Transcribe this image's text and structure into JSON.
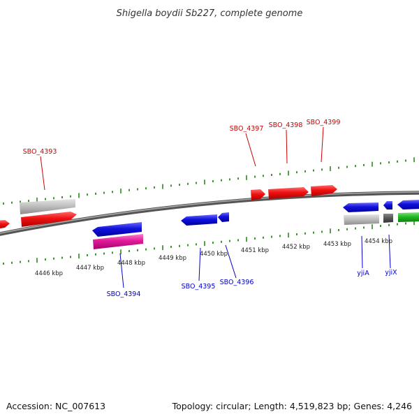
{
  "title": "Shigella boydii Sb227, complete genome",
  "footer": {
    "accession": "Accession: NC_007613",
    "summary": "Topology: circular; Length: 4,519,823 bp; Genes: 4,246"
  },
  "colors": {
    "red": "#ee1111",
    "blue": "#1111dd",
    "magenta": "#e0199a",
    "gray": "#bbbbbb",
    "dark_gray": "#555555",
    "green": "#22bb22",
    "tick": "#2a8a1a",
    "red_label": "#cc0000",
    "blue_label": "#0000cc"
  },
  "kbp_labels": [
    "4446 kbp",
    "4447 kbp",
    "4448 kbp",
    "4449 kbp",
    "4450 kbp",
    "4451 kbp",
    "4452 kbp",
    "4453 kbp",
    "4454 kbp"
  ],
  "gene_labels": {
    "red": [
      "SBO_4393",
      "SBO_4397",
      "SBO_4398",
      "SBO_4399"
    ],
    "blue": [
      "SBO_4394",
      "SBO_4395",
      "SBO_4396",
      "yjiA",
      "yjiX"
    ]
  }
}
